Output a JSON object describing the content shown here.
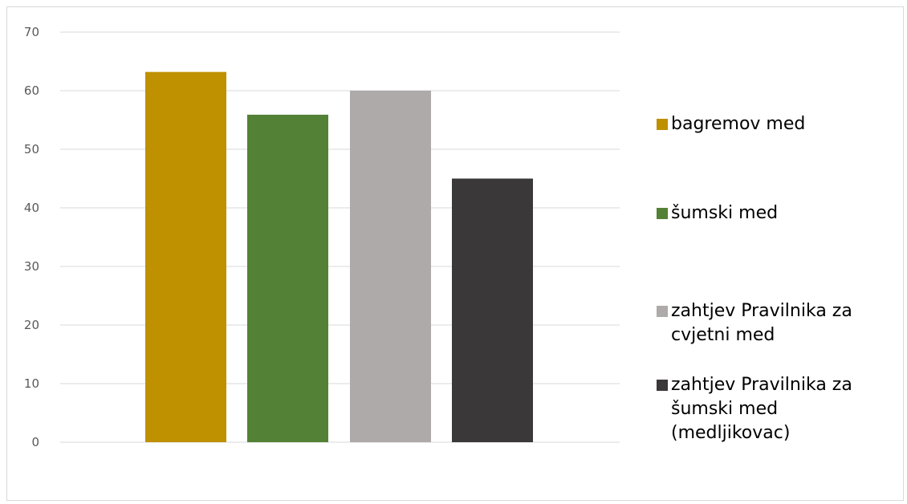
{
  "chart_data": {
    "type": "bar",
    "title": "",
    "xlabel": "",
    "ylabel": "",
    "ylim": [
      0,
      70
    ],
    "yticks": [
      0,
      10,
      20,
      30,
      40,
      50,
      60,
      70
    ],
    "grid": true,
    "legend_position": "right",
    "series": [
      {
        "name": "bagremov med",
        "value": 63.2,
        "color": "#bf9000"
      },
      {
        "name": "šumski med",
        "value": 55.9,
        "color": "#538135"
      },
      {
        "name": "zahtjev Pravilnika za\ncvjetni med",
        "value": 60,
        "color": "#aeaaaa"
      },
      {
        "name": "zahtjev Pravilnika za\nšumski med\n(medljikovac)",
        "value": 45,
        "color": "#3a3838"
      }
    ]
  }
}
